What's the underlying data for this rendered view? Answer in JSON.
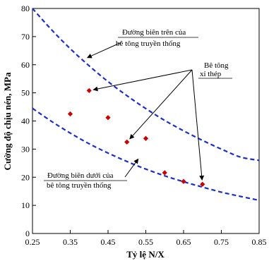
{
  "chart_data": {
    "type": "scatter",
    "xlabel": "Tỷ lệ N/X",
    "ylabel": "Cường độ chịu nén, MPa",
    "xlim": [
      0.25,
      0.85
    ],
    "ylim": [
      0,
      80
    ],
    "x_ticks": [
      "0.25",
      "0.35",
      "0.45",
      "0.55",
      "0.65",
      "0.75",
      "0.85"
    ],
    "y_ticks": [
      "0",
      "10",
      "20",
      "30",
      "40",
      "50",
      "60",
      "70",
      "80"
    ],
    "grid": false,
    "series": [
      {
        "name": "Bê tông xỉ thép",
        "type": "scatter",
        "color": "#cc0000",
        "points": [
          {
            "x": 0.35,
            "y": 42.5
          },
          {
            "x": 0.4,
            "y": 50.8
          },
          {
            "x": 0.45,
            "y": 41.2
          },
          {
            "x": 0.5,
            "y": 32.5
          },
          {
            "x": 0.55,
            "y": 33.8
          },
          {
            "x": 0.6,
            "y": 21.6
          },
          {
            "x": 0.65,
            "y": 18.5
          },
          {
            "x": 0.7,
            "y": 17.5
          }
        ]
      },
      {
        "name": "Đường biên trên của bê tông truyền thống",
        "type": "line",
        "style": "dashed",
        "color": "#1a2ecc",
        "points": [
          {
            "x": 0.25,
            "y": 80
          },
          {
            "x": 0.3,
            "y": 72.5
          },
          {
            "x": 0.35,
            "y": 65.7
          },
          {
            "x": 0.4,
            "y": 59.6
          },
          {
            "x": 0.45,
            "y": 54.0
          },
          {
            "x": 0.5,
            "y": 49.0
          },
          {
            "x": 0.55,
            "y": 44.4
          },
          {
            "x": 0.6,
            "y": 40.2
          },
          {
            "x": 0.65,
            "y": 36.5
          },
          {
            "x": 0.7,
            "y": 33.1
          },
          {
            "x": 0.75,
            "y": 30.0
          },
          {
            "x": 0.8,
            "y": 27.2
          },
          {
            "x": 0.85,
            "y": 26.0
          }
        ]
      },
      {
        "name": "Đường biên dưới của bê tông truyền thống",
        "type": "line",
        "style": "dashed",
        "color": "#1a2ecc",
        "points": [
          {
            "x": 0.25,
            "y": 44.5
          },
          {
            "x": 0.3,
            "y": 39.9
          },
          {
            "x": 0.35,
            "y": 35.7
          },
          {
            "x": 0.4,
            "y": 31.9
          },
          {
            "x": 0.45,
            "y": 28.6
          },
          {
            "x": 0.5,
            "y": 25.6
          },
          {
            "x": 0.55,
            "y": 22.9
          },
          {
            "x": 0.6,
            "y": 20.5
          },
          {
            "x": 0.65,
            "y": 18.4
          },
          {
            "x": 0.7,
            "y": 16.5
          },
          {
            "x": 0.75,
            "y": 14.7
          },
          {
            "x": 0.8,
            "y": 13.2
          },
          {
            "x": 0.85,
            "y": 11.8
          }
        ]
      }
    ],
    "annotations": [
      {
        "lines": [
          "Đường biên trên của",
          "bê tông truyền thống"
        ],
        "target": {
          "x": 0.395,
          "y": 62.5
        }
      },
      {
        "lines": [
          "Bê tông",
          "xỉ thép"
        ],
        "targets": [
          {
            "x": 0.4,
            "y": 50.8
          },
          {
            "x": 0.5,
            "y": 32.5
          },
          {
            "x": 0.7,
            "y": 17.5
          }
        ]
      },
      {
        "lines": [
          "Đường biên dưới của",
          "bê tông truyền thống"
        ],
        "target": {
          "x": 0.53,
          "y": 26.5
        }
      }
    ]
  }
}
